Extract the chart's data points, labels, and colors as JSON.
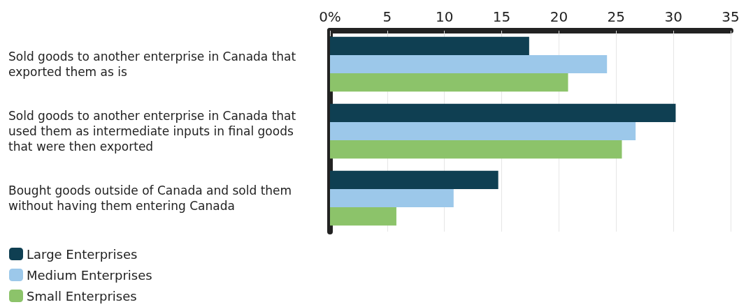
{
  "chart_data": {
    "type": "bar",
    "orientation": "horizontal",
    "categories": [
      "Sold goods to another enterprise in Canada that exported them as is",
      "Sold goods to another enterprise in Canada that used them as intermediate inputs in final goods that were then exported",
      "Bought goods outside of Canada and sold them without having them entering Canada"
    ],
    "series": [
      {
        "name": "Large Enterprises",
        "color": "#0f3f52",
        "values": [
          17.4,
          30.2,
          14.7
        ]
      },
      {
        "name": "Medium Enterprises",
        "color": "#9cc8ea",
        "values": [
          24.2,
          26.7,
          10.8
        ]
      },
      {
        "name": "Small Enterprises",
        "color": "#8cc36a",
        "values": [
          20.8,
          25.5,
          5.8
        ]
      }
    ],
    "xlim": [
      0,
      35
    ],
    "xticks": [
      {
        "value": 0,
        "label": "0%"
      },
      5,
      10,
      15,
      20,
      25,
      30,
      35
    ],
    "grid": "x",
    "legend": "bottom left"
  }
}
